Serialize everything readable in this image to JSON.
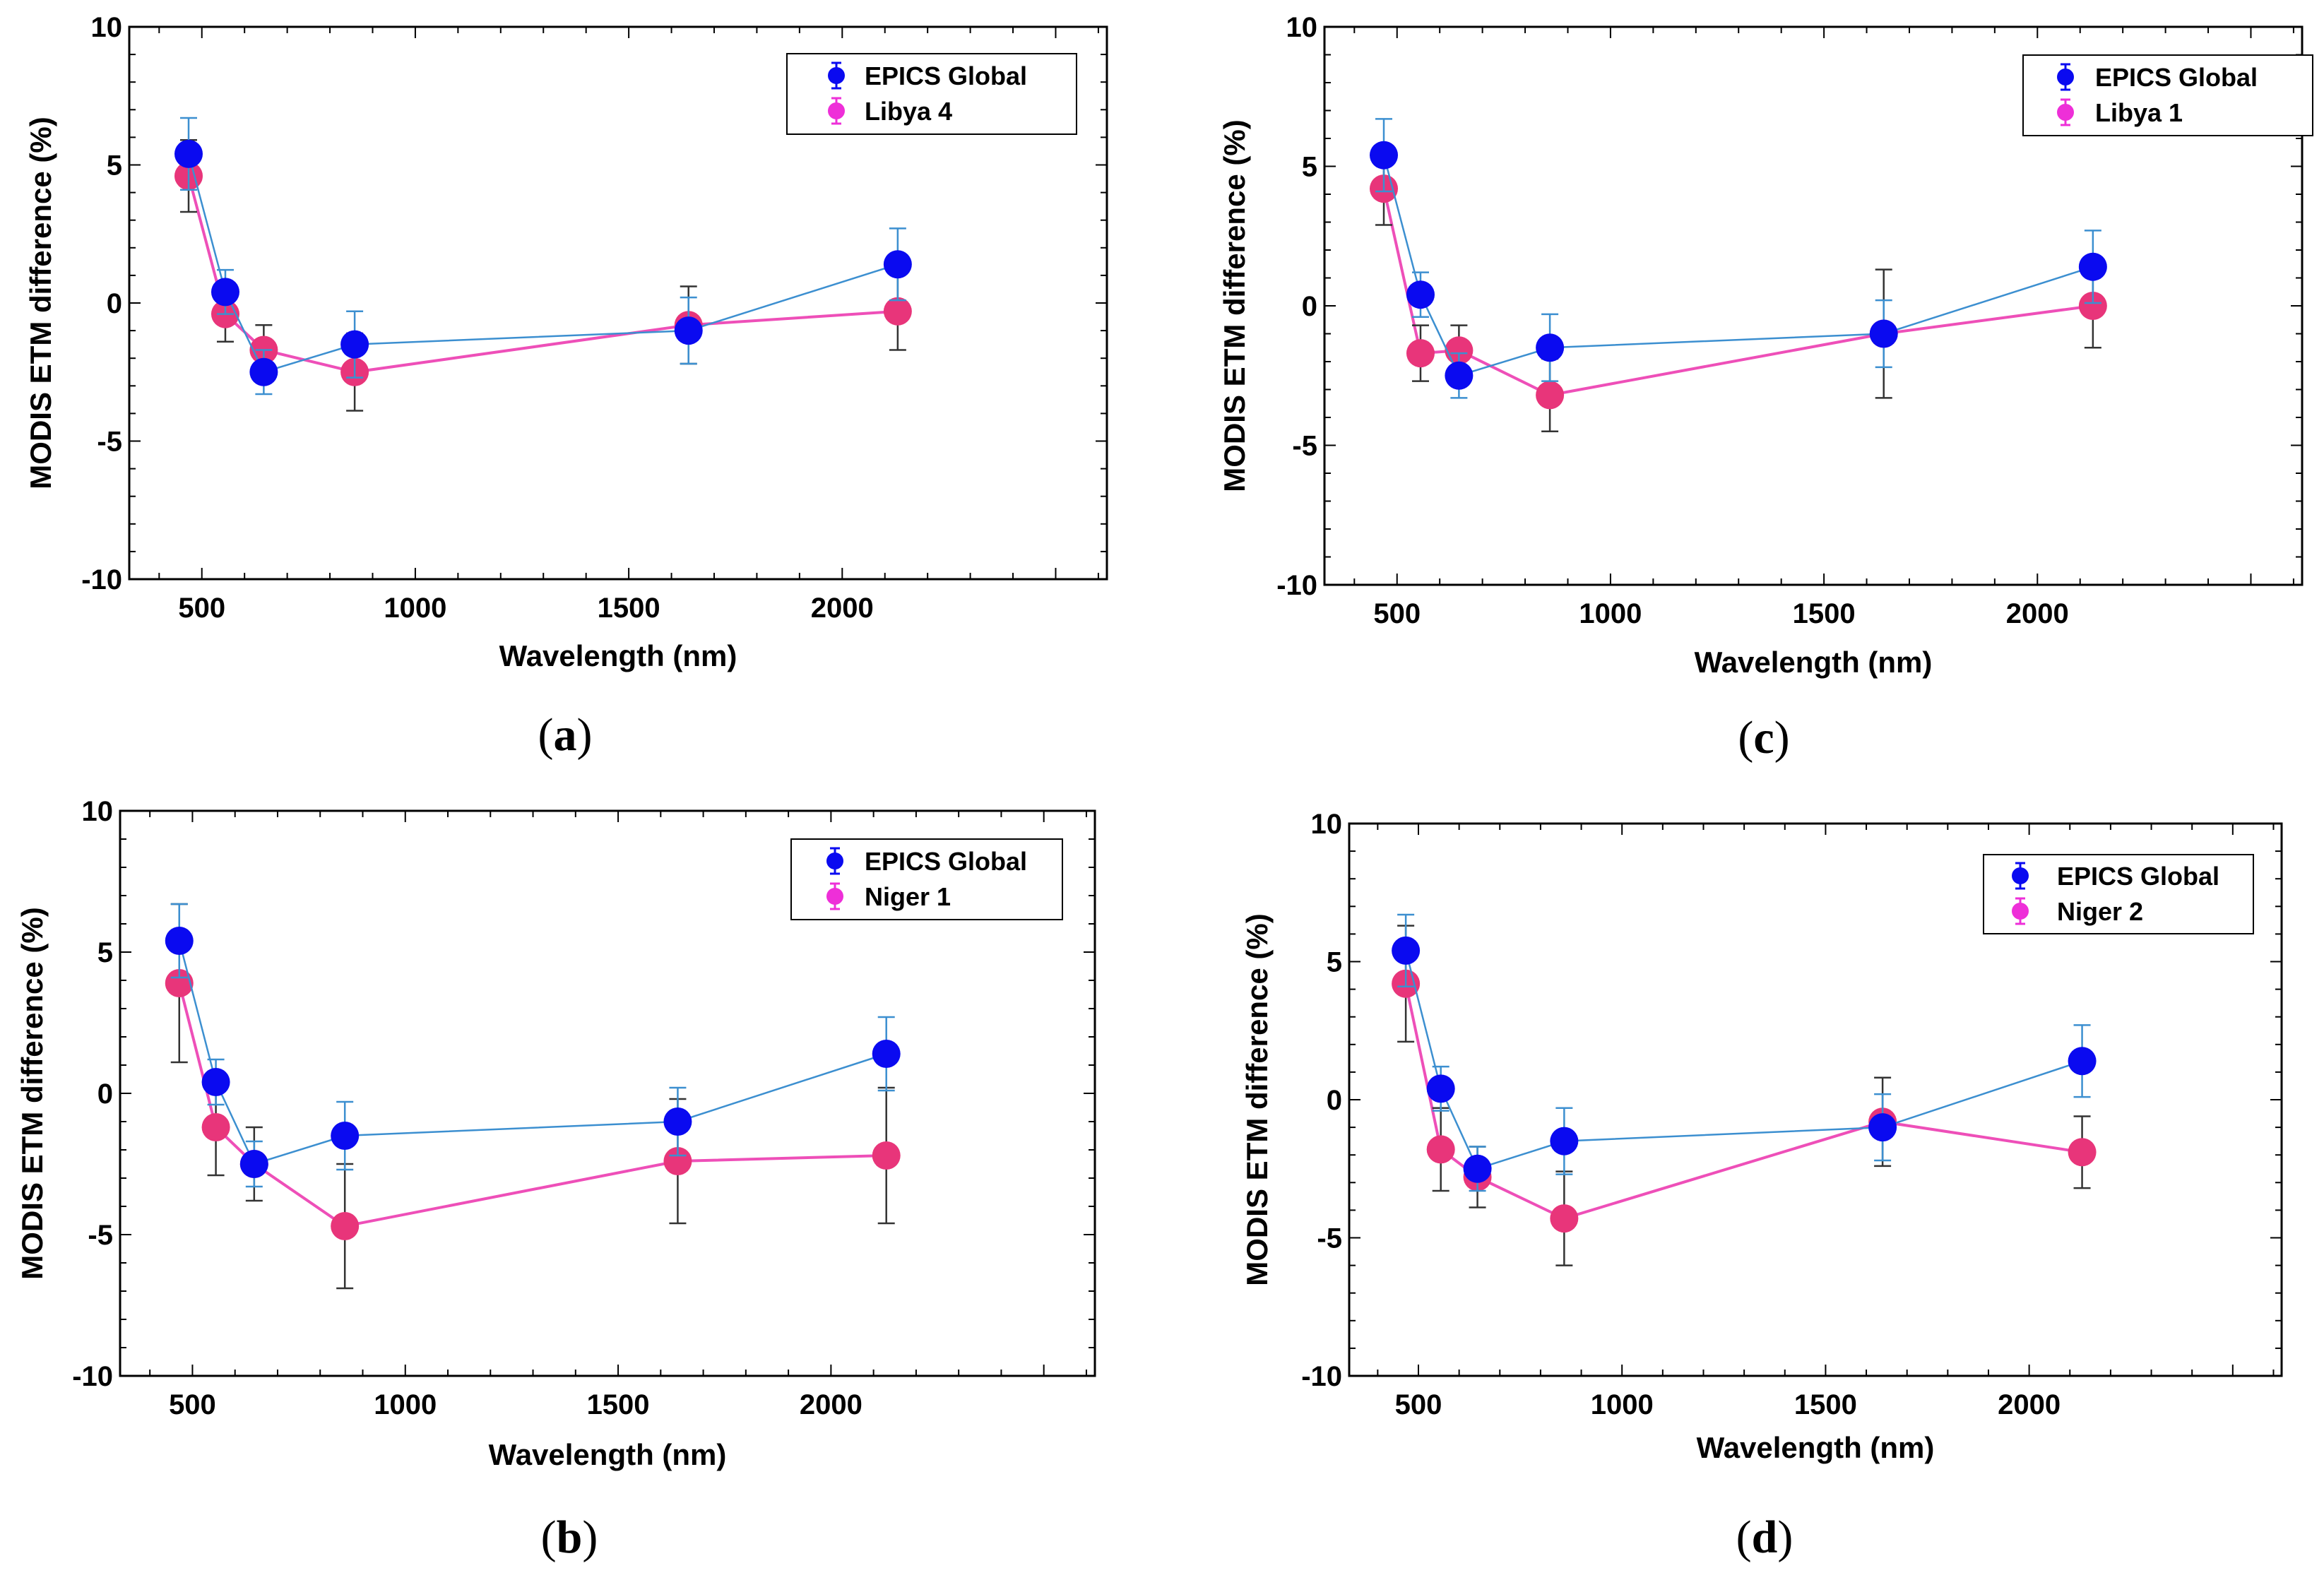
{
  "chart_data": [
    {
      "panel": "a",
      "type": "line",
      "xlabel": "Wavelength (nm)",
      "ylabel": "MODIS ETM difference (%)",
      "xlim": [
        330,
        2620
      ],
      "ylim": [
        -10,
        10
      ],
      "xticks": [
        500,
        1000,
        1500,
        2000
      ],
      "yticks": [
        -10,
        -5,
        0,
        5,
        10
      ],
      "legend_position": "top-right",
      "series": [
        {
          "name": "EPICS Global",
          "color": "#0a0af0",
          "line_color": "#3c8fd0",
          "x": [
            469,
            555,
            645,
            858,
            1640,
            2130
          ],
          "values": [
            5.4,
            0.4,
            -2.5,
            -1.5,
            -1.0,
            1.4
          ],
          "errors": [
            1.3,
            0.8,
            0.8,
            1.2,
            1.2,
            1.3
          ]
        },
        {
          "name": "Libya 4",
          "color": "#e8357a",
          "line_color": "#ee4fb8",
          "x": [
            469,
            555,
            645,
            858,
            1640,
            2130
          ],
          "values": [
            4.6,
            -0.4,
            -1.7,
            -2.5,
            -0.8,
            -0.3
          ],
          "errors": [
            1.3,
            1.0,
            0.9,
            1.4,
            1.4,
            1.4
          ]
        }
      ]
    },
    {
      "panel": "c",
      "type": "line",
      "xlabel": "Wavelength (nm)",
      "ylabel": "MODIS ETM difference (%)",
      "xlim": [
        330,
        2620
      ],
      "ylim": [
        -10,
        10
      ],
      "xticks": [
        500,
        1000,
        1500,
        2000
      ],
      "yticks": [
        -10,
        -5,
        0,
        5,
        10
      ],
      "legend_position": "top-right",
      "series": [
        {
          "name": "EPICS Global",
          "color": "#0a0af0",
          "line_color": "#3c8fd0",
          "x": [
            469,
            555,
            645,
            858,
            1640,
            2130
          ],
          "values": [
            5.4,
            0.4,
            -2.5,
            -1.5,
            -1.0,
            1.4
          ],
          "errors": [
            1.3,
            0.8,
            0.8,
            1.2,
            1.2,
            1.3
          ]
        },
        {
          "name": "Libya 1",
          "color": "#e8357a",
          "line_color": "#ee4fb8",
          "x": [
            469,
            555,
            645,
            858,
            1640,
            2130
          ],
          "values": [
            4.2,
            -1.7,
            -1.6,
            -3.2,
            -1.0,
            0.0
          ],
          "errors": [
            1.3,
            1.0,
            0.9,
            1.3,
            2.3,
            1.5
          ]
        }
      ]
    },
    {
      "panel": "b",
      "type": "line",
      "xlabel": "Wavelength (nm)",
      "ylabel": "MODIS ETM difference (%)",
      "xlim": [
        330,
        2620
      ],
      "ylim": [
        -10,
        10
      ],
      "xticks": [
        500,
        1000,
        1500,
        2000
      ],
      "yticks": [
        -10,
        -5,
        0,
        5,
        10
      ],
      "legend_position": "top-right",
      "series": [
        {
          "name": "EPICS Global",
          "color": "#0a0af0",
          "line_color": "#3c8fd0",
          "x": [
            469,
            555,
            645,
            858,
            1640,
            2130
          ],
          "values": [
            5.4,
            0.4,
            -2.5,
            -1.5,
            -1.0,
            1.4
          ],
          "errors": [
            1.3,
            0.8,
            0.8,
            1.2,
            1.2,
            1.3
          ]
        },
        {
          "name": "Niger 1",
          "color": "#e8357a",
          "line_color": "#ee4fb8",
          "x": [
            469,
            555,
            645,
            858,
            1640,
            2130
          ],
          "values": [
            3.9,
            -1.2,
            -2.5,
            -4.7,
            -2.4,
            -2.2
          ],
          "errors": [
            2.8,
            1.7,
            1.3,
            2.2,
            2.2,
            2.4
          ]
        }
      ]
    },
    {
      "panel": "d",
      "type": "line",
      "xlabel": "Wavelength (nm)",
      "ylabel": "MODIS ETM difference (%)",
      "xlim": [
        330,
        2620
      ],
      "ylim": [
        -10,
        10
      ],
      "xticks": [
        500,
        1000,
        1500,
        2000
      ],
      "yticks": [
        -10,
        -5,
        0,
        5,
        10
      ],
      "legend_position": "top-right",
      "series": [
        {
          "name": "EPICS Global",
          "color": "#0a0af0",
          "line_color": "#3c8fd0",
          "x": [
            469,
            555,
            645,
            858,
            1640,
            2130
          ],
          "values": [
            5.4,
            0.4,
            -2.5,
            -1.5,
            -1.0,
            1.4
          ],
          "errors": [
            1.3,
            0.8,
            0.8,
            1.2,
            1.2,
            1.3
          ]
        },
        {
          "name": "Niger 2",
          "color": "#e8357a",
          "line_color": "#ee4fb8",
          "x": [
            469,
            555,
            645,
            858,
            1640,
            2130
          ],
          "values": [
            4.2,
            -1.8,
            -2.8,
            -4.3,
            -0.8,
            -1.9
          ],
          "errors": [
            2.1,
            1.5,
            1.1,
            1.7,
            1.6,
            1.3
          ]
        }
      ]
    }
  ],
  "panel_labels": {
    "a": {
      "open": "(",
      "letter": "a",
      "close": ")"
    },
    "b": {
      "open": "(",
      "letter": "b",
      "close": ")"
    },
    "c": {
      "open": "(",
      "letter": "c",
      "close": ")"
    },
    "d": {
      "open": "(",
      "letter": "d",
      "close": ")"
    }
  }
}
